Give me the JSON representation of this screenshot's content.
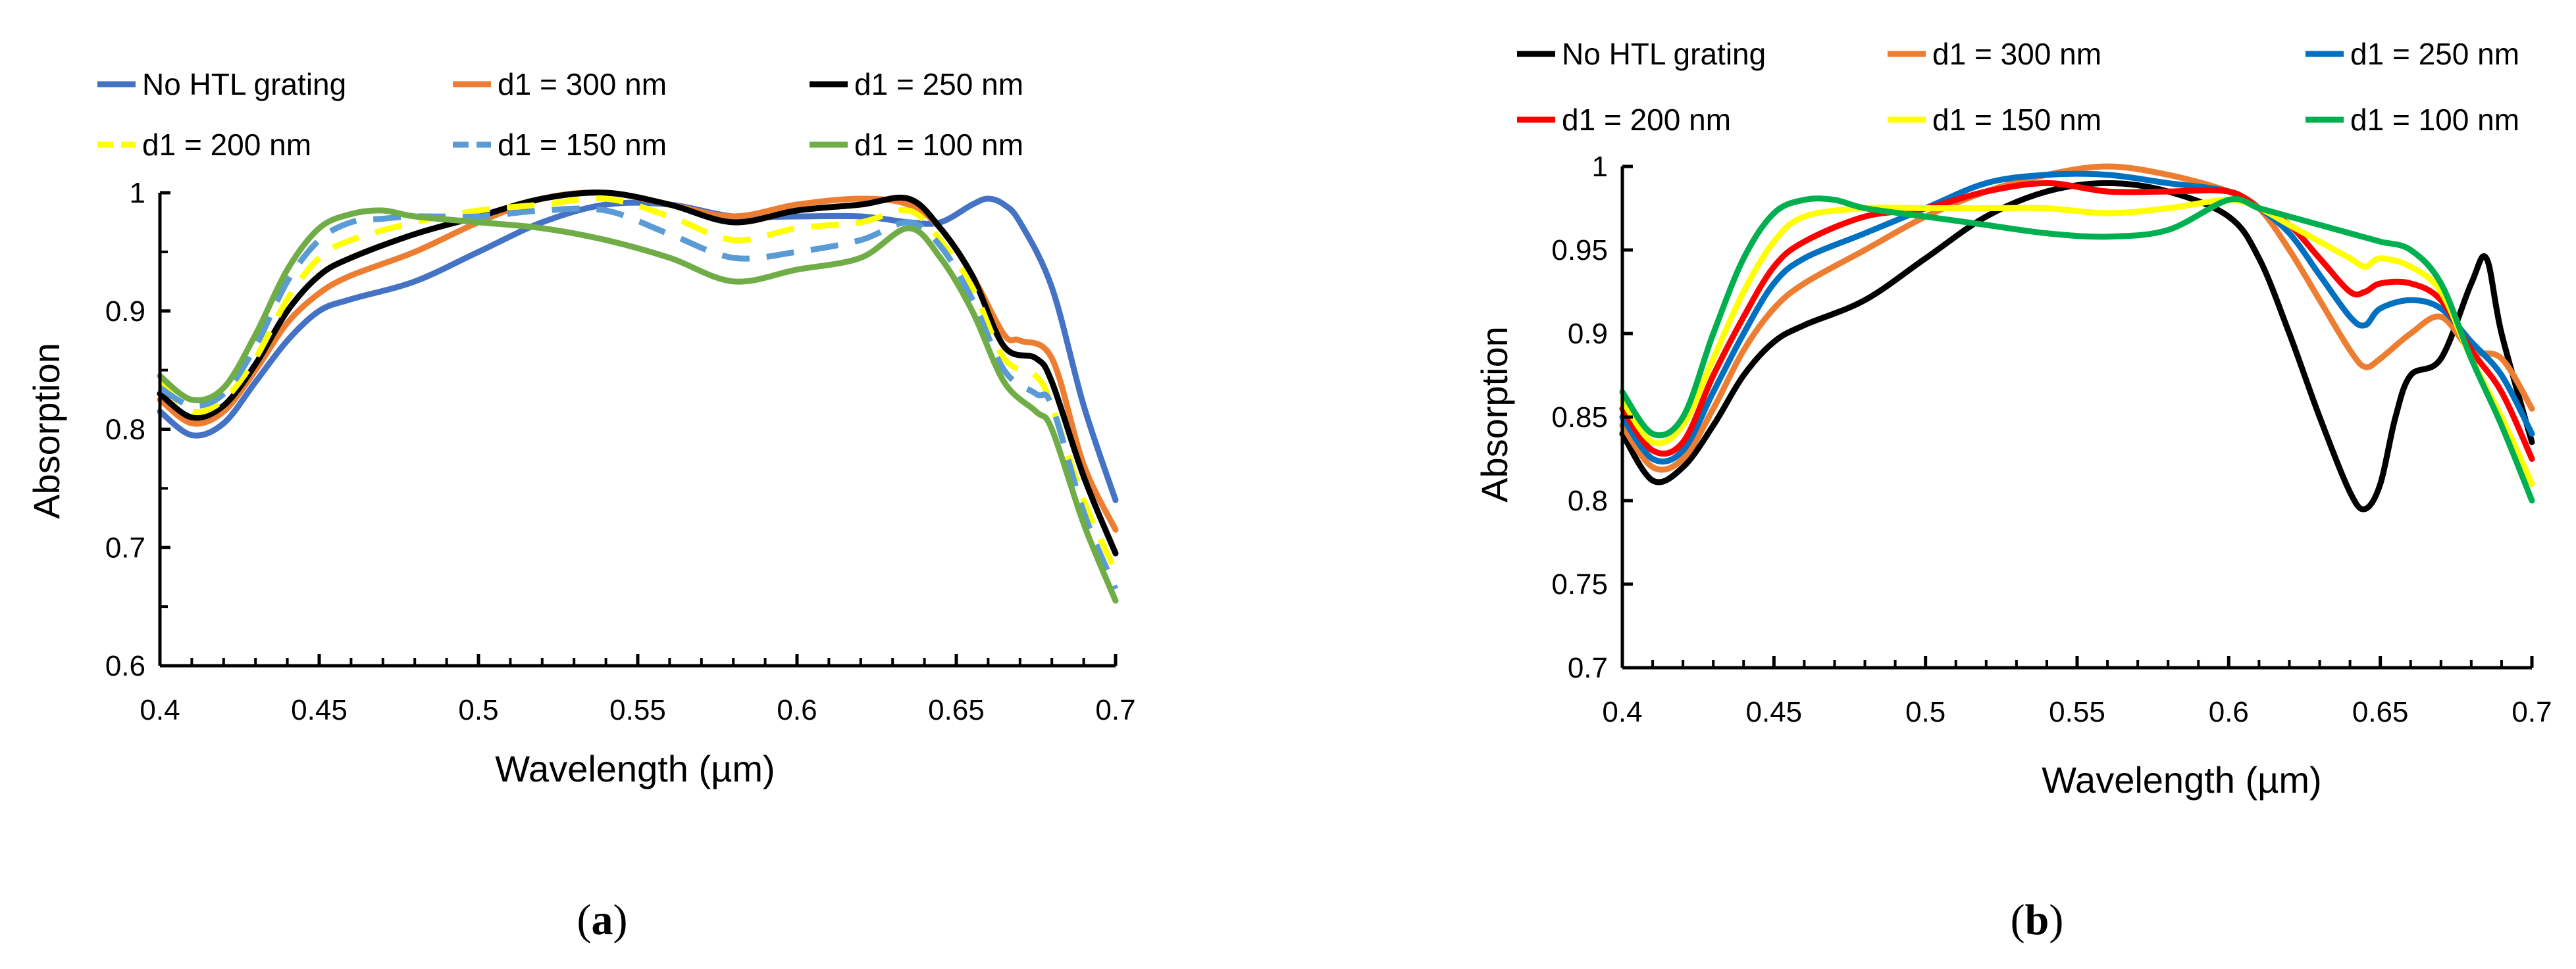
{
  "chart_data": [
    {
      "type": "line",
      "panel_label": "a",
      "xlabel": "Wavelength (µm)",
      "ylabel": "Absorption",
      "xlim": [
        0.4,
        0.7
      ],
      "ylim": [
        0.6,
        1.0
      ],
      "x_ticks": [
        0.4,
        0.45,
        0.5,
        0.55,
        0.6,
        0.65,
        0.7
      ],
      "x_tick_labels": [
        "0.4",
        "0.45",
        "0.5",
        "0.55",
        "0.6",
        "0.65",
        "0.7"
      ],
      "y_ticks": [
        0.6,
        0.7,
        0.8,
        0.9,
        1.0
      ],
      "y_tick_labels": [
        "0.6",
        "0.7",
        "0.8",
        "0.9",
        "1"
      ],
      "legend_position": "top",
      "series": [
        {
          "name": "No HTL grating",
          "color": "#4472C4",
          "dash": "solid",
          "x": [
            0.4,
            0.41,
            0.42,
            0.43,
            0.44,
            0.45,
            0.46,
            0.48,
            0.5,
            0.52,
            0.54,
            0.56,
            0.58,
            0.6,
            0.62,
            0.635,
            0.645,
            0.655,
            0.66,
            0.665,
            0.67,
            0.68,
            0.69,
            0.7
          ],
          "values": [
            0.815,
            0.795,
            0.805,
            0.84,
            0.875,
            0.9,
            0.91,
            0.925,
            0.95,
            0.975,
            0.99,
            0.99,
            0.98,
            0.98,
            0.98,
            0.975,
            0.975,
            0.99,
            0.995,
            0.99,
            0.975,
            0.92,
            0.82,
            0.74
          ]
        },
        {
          "name": "d1 = 300 nm",
          "color": "#ED7D31",
          "dash": "solid",
          "x": [
            0.4,
            0.41,
            0.42,
            0.43,
            0.44,
            0.45,
            0.46,
            0.48,
            0.5,
            0.52,
            0.54,
            0.56,
            0.58,
            0.6,
            0.62,
            0.635,
            0.645,
            0.655,
            0.665,
            0.67,
            0.68,
            0.69,
            0.7
          ],
          "values": [
            0.825,
            0.805,
            0.815,
            0.85,
            0.89,
            0.915,
            0.93,
            0.95,
            0.975,
            0.995,
            1.0,
            0.99,
            0.98,
            0.99,
            0.995,
            0.99,
            0.97,
            0.93,
            0.88,
            0.875,
            0.86,
            0.77,
            0.715
          ]
        },
        {
          "name": "d1 = 250 nm",
          "color": "#000000",
          "dash": "solid",
          "x": [
            0.4,
            0.41,
            0.42,
            0.43,
            0.44,
            0.45,
            0.46,
            0.48,
            0.5,
            0.52,
            0.54,
            0.56,
            0.58,
            0.6,
            0.62,
            0.635,
            0.645,
            0.655,
            0.665,
            0.675,
            0.68,
            0.69,
            0.7
          ],
          "values": [
            0.83,
            0.81,
            0.82,
            0.855,
            0.9,
            0.93,
            0.945,
            0.965,
            0.98,
            0.995,
            1.0,
            0.99,
            0.975,
            0.985,
            0.99,
            0.995,
            0.97,
            0.93,
            0.87,
            0.86,
            0.84,
            0.76,
            0.695
          ]
        },
        {
          "name": "d1 = 200 nm",
          "color": "#FFFF00",
          "dash": "dashed",
          "x": [
            0.4,
            0.41,
            0.42,
            0.43,
            0.44,
            0.45,
            0.46,
            0.48,
            0.5,
            0.52,
            0.54,
            0.56,
            0.58,
            0.6,
            0.62,
            0.635,
            0.645,
            0.655,
            0.665,
            0.675,
            0.68,
            0.69,
            0.7
          ],
          "values": [
            0.84,
            0.815,
            0.825,
            0.86,
            0.91,
            0.945,
            0.96,
            0.975,
            0.985,
            0.99,
            0.995,
            0.98,
            0.96,
            0.97,
            0.975,
            0.985,
            0.96,
            0.92,
            0.86,
            0.845,
            0.82,
            0.74,
            0.68
          ]
        },
        {
          "name": "d1 = 150 nm",
          "color": "#5B9BD5",
          "dash": "dashed",
          "x": [
            0.4,
            0.41,
            0.42,
            0.43,
            0.44,
            0.45,
            0.46,
            0.47,
            0.48,
            0.5,
            0.52,
            0.54,
            0.56,
            0.58,
            0.6,
            0.62,
            0.635,
            0.645,
            0.655,
            0.665,
            0.675,
            0.68,
            0.69,
            0.7
          ],
          "values": [
            0.835,
            0.82,
            0.83,
            0.87,
            0.925,
            0.96,
            0.975,
            0.978,
            0.98,
            0.98,
            0.985,
            0.985,
            0.965,
            0.945,
            0.95,
            0.96,
            0.975,
            0.955,
            0.91,
            0.85,
            0.83,
            0.82,
            0.73,
            0.665
          ]
        },
        {
          "name": "d1 = 100 nm",
          "color": "#70AD47",
          "dash": "solid",
          "x": [
            0.4,
            0.41,
            0.42,
            0.43,
            0.44,
            0.45,
            0.46,
            0.47,
            0.48,
            0.5,
            0.52,
            0.54,
            0.56,
            0.58,
            0.6,
            0.62,
            0.635,
            0.645,
            0.655,
            0.665,
            0.675,
            0.68,
            0.69,
            0.7
          ],
          "values": [
            0.845,
            0.825,
            0.835,
            0.88,
            0.935,
            0.97,
            0.982,
            0.985,
            0.98,
            0.975,
            0.97,
            0.96,
            0.945,
            0.925,
            0.935,
            0.945,
            0.97,
            0.945,
            0.9,
            0.84,
            0.815,
            0.8,
            0.72,
            0.655
          ]
        }
      ]
    },
    {
      "type": "line",
      "panel_label": "b",
      "xlabel": "Wavelength (µm)",
      "ylabel": "Absorption",
      "xlim": [
        0.4,
        0.7
      ],
      "ylim": [
        0.7,
        1.0
      ],
      "x_ticks": [
        0.4,
        0.45,
        0.5,
        0.55,
        0.6,
        0.65,
        0.7
      ],
      "x_tick_labels": [
        "0.4",
        "0.45",
        "0.5",
        "0.55",
        "0.6",
        "0.65",
        "0.7"
      ],
      "y_ticks": [
        0.7,
        0.75,
        0.8,
        0.85,
        0.9,
        0.95,
        1.0
      ],
      "y_tick_labels": [
        "0.7",
        "0.75",
        "0.8",
        "0.85",
        "0.9",
        "0.95",
        "1"
      ],
      "legend_position": "top",
      "series": [
        {
          "name": "No HTL grating",
          "color": "#000000",
          "dash": "solid",
          "x": [
            0.4,
            0.41,
            0.42,
            0.43,
            0.44,
            0.45,
            0.46,
            0.48,
            0.5,
            0.52,
            0.54,
            0.56,
            0.58,
            0.6,
            0.61,
            0.62,
            0.63,
            0.64,
            0.645,
            0.65,
            0.655,
            0.66,
            0.67,
            0.68,
            0.685,
            0.69,
            0.7
          ],
          "values": [
            0.84,
            0.812,
            0.82,
            0.845,
            0.875,
            0.895,
            0.905,
            0.92,
            0.945,
            0.97,
            0.985,
            0.99,
            0.985,
            0.97,
            0.945,
            0.9,
            0.85,
            0.805,
            0.795,
            0.81,
            0.85,
            0.875,
            0.885,
            0.93,
            0.945,
            0.9,
            0.835
          ]
        },
        {
          "name": "d1 = 300 nm",
          "color": "#ED7D31",
          "dash": "solid",
          "x": [
            0.4,
            0.41,
            0.42,
            0.43,
            0.44,
            0.45,
            0.46,
            0.48,
            0.5,
            0.52,
            0.54,
            0.56,
            0.58,
            0.6,
            0.61,
            0.62,
            0.63,
            0.64,
            0.645,
            0.65,
            0.66,
            0.67,
            0.68,
            0.69,
            0.7
          ],
          "values": [
            0.845,
            0.82,
            0.825,
            0.855,
            0.89,
            0.915,
            0.93,
            0.95,
            0.97,
            0.985,
            0.995,
            1.0,
            0.995,
            0.985,
            0.975,
            0.95,
            0.92,
            0.89,
            0.88,
            0.885,
            0.9,
            0.91,
            0.89,
            0.885,
            0.855
          ]
        },
        {
          "name": "d1 = 250 nm",
          "color": "#0070C0",
          "dash": "solid",
          "x": [
            0.4,
            0.41,
            0.42,
            0.43,
            0.44,
            0.45,
            0.46,
            0.48,
            0.5,
            0.52,
            0.54,
            0.56,
            0.58,
            0.6,
            0.61,
            0.62,
            0.63,
            0.64,
            0.645,
            0.65,
            0.66,
            0.67,
            0.68,
            0.69,
            0.7
          ],
          "values": [
            0.85,
            0.825,
            0.83,
            0.865,
            0.9,
            0.93,
            0.945,
            0.96,
            0.975,
            0.99,
            0.995,
            0.995,
            0.99,
            0.985,
            0.975,
            0.96,
            0.935,
            0.91,
            0.905,
            0.915,
            0.92,
            0.915,
            0.895,
            0.875,
            0.84
          ]
        },
        {
          "name": "d1 = 200 nm",
          "color": "#FF0000",
          "dash": "solid",
          "x": [
            0.4,
            0.41,
            0.42,
            0.43,
            0.44,
            0.45,
            0.46,
            0.48,
            0.5,
            0.52,
            0.54,
            0.56,
            0.58,
            0.6,
            0.61,
            0.62,
            0.63,
            0.64,
            0.645,
            0.65,
            0.66,
            0.67,
            0.68,
            0.69,
            0.7
          ],
          "values": [
            0.855,
            0.83,
            0.835,
            0.875,
            0.91,
            0.94,
            0.955,
            0.97,
            0.975,
            0.985,
            0.99,
            0.985,
            0.985,
            0.985,
            0.975,
            0.965,
            0.945,
            0.925,
            0.925,
            0.93,
            0.93,
            0.92,
            0.89,
            0.865,
            0.825
          ]
        },
        {
          "name": "d1 = 150 nm",
          "color": "#FFFF00",
          "dash": "solid",
          "x": [
            0.4,
            0.41,
            0.42,
            0.43,
            0.44,
            0.45,
            0.46,
            0.48,
            0.5,
            0.52,
            0.54,
            0.56,
            0.58,
            0.6,
            0.61,
            0.62,
            0.63,
            0.64,
            0.645,
            0.65,
            0.66,
            0.67,
            0.68,
            0.69,
            0.7
          ],
          "values": [
            0.86,
            0.835,
            0.845,
            0.885,
            0.925,
            0.955,
            0.97,
            0.975,
            0.975,
            0.975,
            0.975,
            0.972,
            0.975,
            0.98,
            0.975,
            0.965,
            0.955,
            0.945,
            0.94,
            0.945,
            0.94,
            0.925,
            0.885,
            0.85,
            0.81
          ]
        },
        {
          "name": "d1 = 100 nm",
          "color": "#00B050",
          "dash": "solid",
          "x": [
            0.4,
            0.41,
            0.42,
            0.43,
            0.44,
            0.45,
            0.46,
            0.47,
            0.48,
            0.5,
            0.52,
            0.54,
            0.56,
            0.58,
            0.6,
            0.61,
            0.62,
            0.63,
            0.64,
            0.65,
            0.66,
            0.67,
            0.68,
            0.69,
            0.7
          ],
          "values": [
            0.865,
            0.84,
            0.85,
            0.9,
            0.945,
            0.972,
            0.98,
            0.98,
            0.975,
            0.97,
            0.965,
            0.96,
            0.958,
            0.962,
            0.98,
            0.975,
            0.97,
            0.965,
            0.96,
            0.955,
            0.95,
            0.93,
            0.885,
            0.845,
            0.8
          ]
        }
      ]
    }
  ]
}
